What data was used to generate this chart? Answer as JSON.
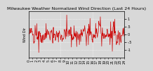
{
  "title": "Milwaukee Weather Normalized Wind Direction (Last 24 Hours)",
  "ylabel": "Wind Dir",
  "background_color": "#d8d8d8",
  "plot_bg_color": "#d8d8d8",
  "line_color": "#cc0000",
  "grid_color": "#ffffff",
  "n_points": 288,
  "ylim": [
    -1.5,
    1.5
  ],
  "yticks": [
    1.0,
    0.5,
    0.0,
    -0.5,
    -1.0
  ],
  "ytick_labels": [
    "1",
    ".5",
    "0",
    "-.5",
    "-1"
  ],
  "title_fontsize": 4.5,
  "tick_fontsize": 3.5,
  "line_width": 0.5,
  "ylabel_fontsize": 3.5
}
